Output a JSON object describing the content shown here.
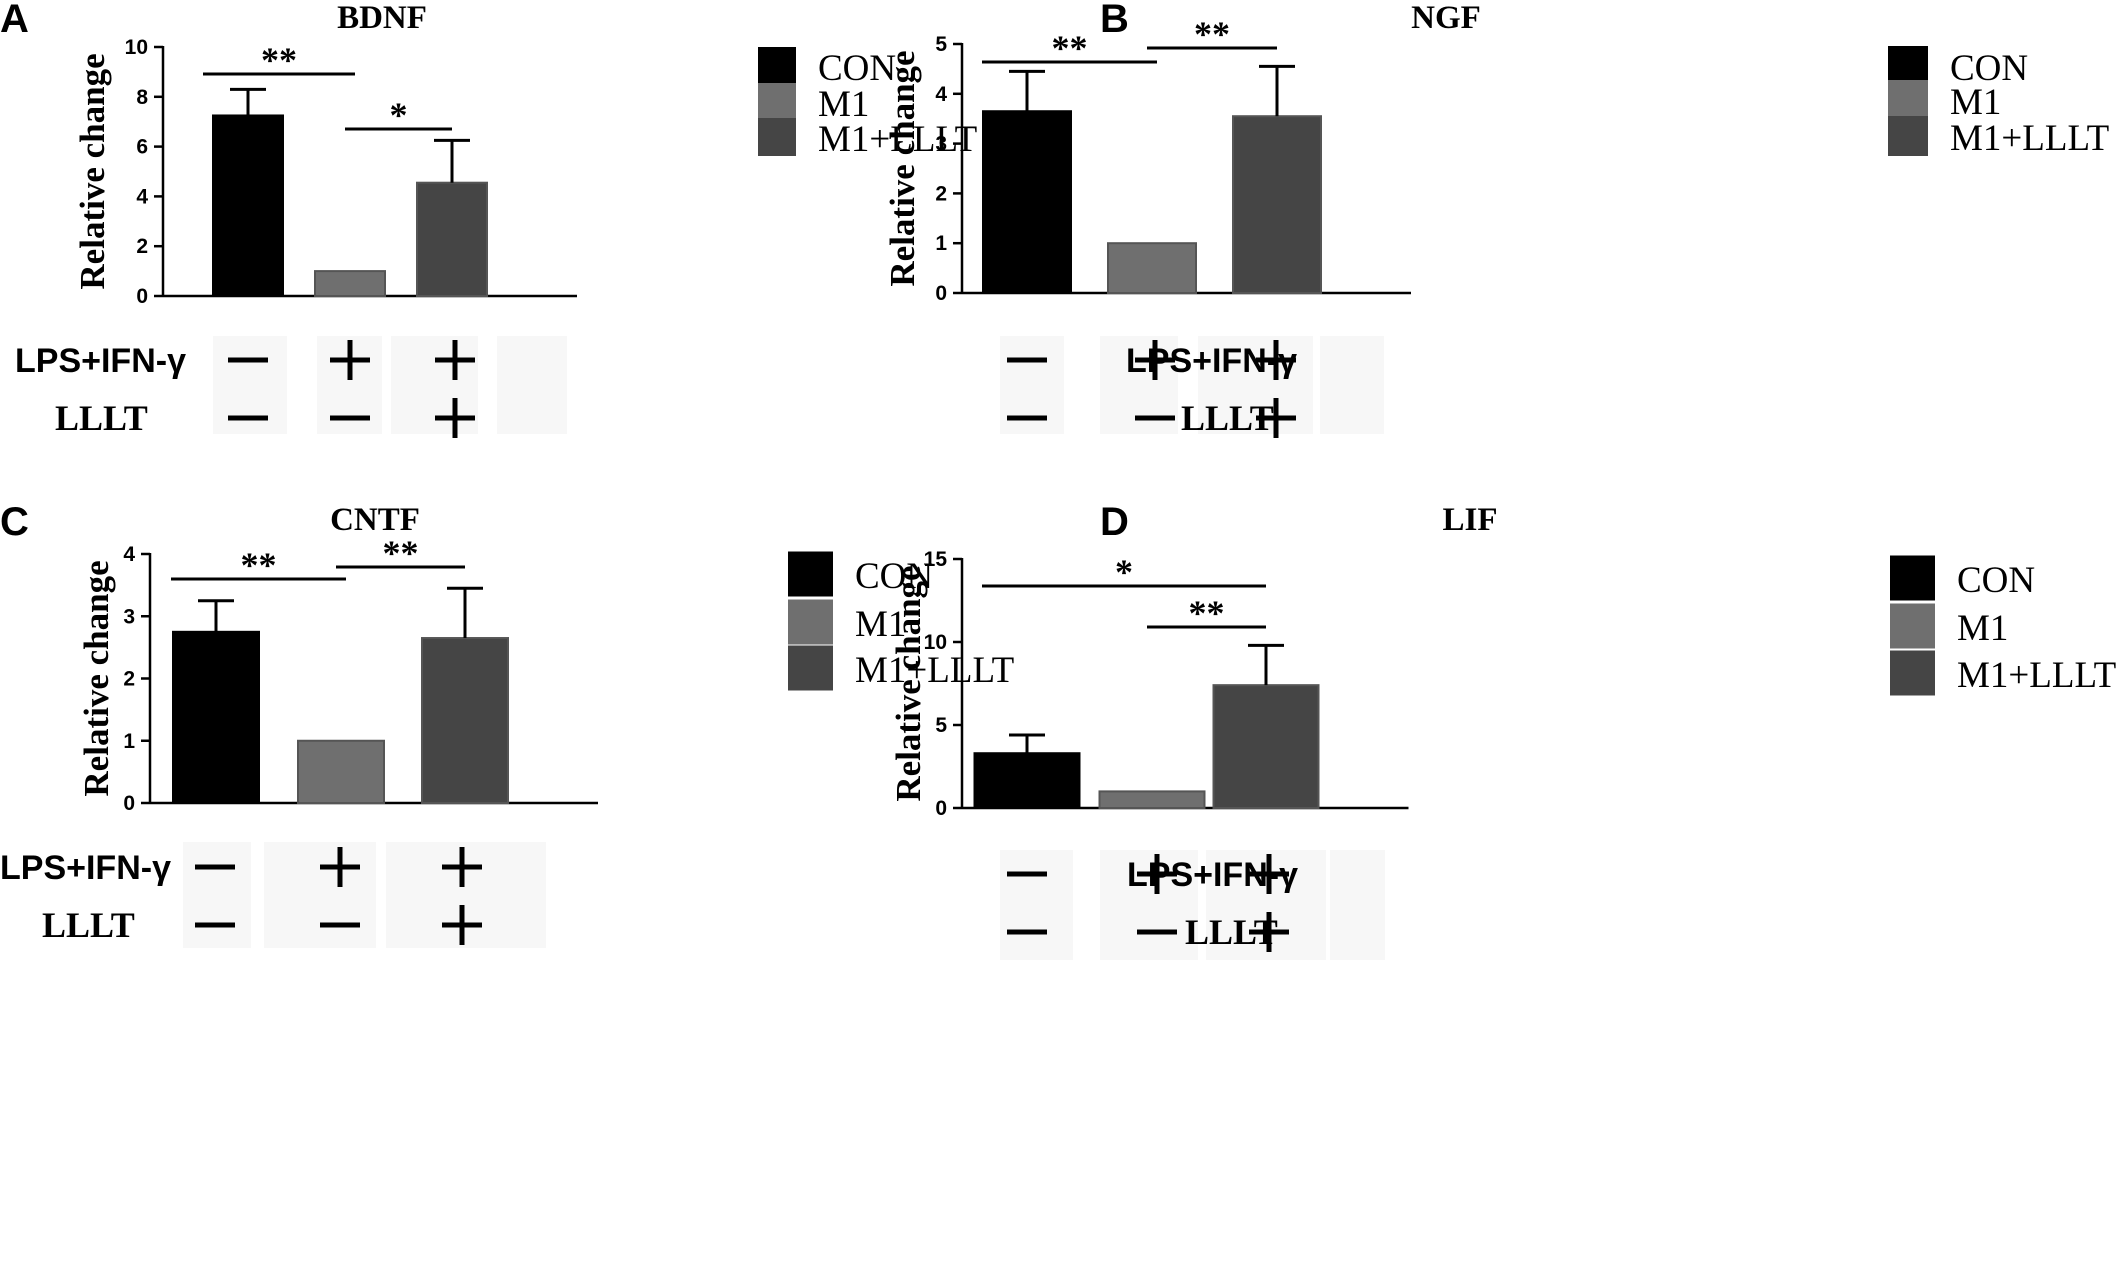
{
  "chart_data": [
    {
      "panel": "A",
      "type": "bar",
      "title": "BDNF",
      "ylabel": "Relative change",
      "categories": [
        "CON",
        "M1",
        "M1+LLLT"
      ],
      "values": [
        7.25,
        1.0,
        4.55
      ],
      "errors": [
        1.05,
        0,
        1.7
      ],
      "ylim": [
        0,
        10
      ],
      "yticks": [
        "0",
        "2",
        "4",
        "6",
        "8",
        "10"
      ],
      "colors": [
        "#000000",
        "#6f6f6f",
        "#454545"
      ],
      "significance": [
        {
          "from": 0,
          "to": 1,
          "label": "**"
        },
        {
          "from": 1,
          "to": 2,
          "label": "*"
        }
      ],
      "legend": [
        "CON",
        "M1",
        "M1+LLLT"
      ],
      "treatment_rows": [
        {
          "label": "LPS+IFN-γ",
          "signs": [
            "–",
            "+",
            "+"
          ]
        },
        {
          "label": "LLLT",
          "signs": [
            "–",
            "–",
            "+"
          ]
        }
      ]
    },
    {
      "panel": "B",
      "type": "bar",
      "title": "NGF",
      "ylabel": "Relative change",
      "categories": [
        "CON",
        "M1",
        "M1+LLLT"
      ],
      "values": [
        3.65,
        1.0,
        3.55
      ],
      "errors": [
        0.8,
        0,
        1.0
      ],
      "ylim": [
        0,
        5
      ],
      "yticks": [
        "0",
        "1",
        "2",
        "3",
        "4",
        "5"
      ],
      "colors": [
        "#000000",
        "#6f6f6f",
        "#454545"
      ],
      "significance": [
        {
          "from": 0,
          "to": 1,
          "label": "**"
        },
        {
          "from": 1,
          "to": 2,
          "label": "**"
        }
      ],
      "legend": [
        "CON",
        "M1",
        "M1+LLLT"
      ],
      "treatment_rows": [
        {
          "label": "LPS+IFN-γ",
          "signs": [
            "–",
            "+",
            "+"
          ]
        },
        {
          "label": "LLLT",
          "signs": [
            "–",
            "–",
            "+"
          ]
        }
      ]
    },
    {
      "panel": "C",
      "type": "bar",
      "title": "CNTF",
      "ylabel": "Relative change",
      "categories": [
        "CON",
        "M1",
        "M1+LLLT"
      ],
      "values": [
        2.75,
        1.0,
        2.65
      ],
      "errors": [
        0.5,
        0,
        0.8
      ],
      "ylim": [
        0,
        4
      ],
      "yticks": [
        "0",
        "1",
        "2",
        "3",
        "4"
      ],
      "colors": [
        "#000000",
        "#6f6f6f",
        "#454545"
      ],
      "significance": [
        {
          "from": 0,
          "to": 1,
          "label": "**"
        },
        {
          "from": 1,
          "to": 2,
          "label": "**"
        }
      ],
      "legend": [
        "CON",
        "M1",
        "M1+LLLT"
      ],
      "treatment_rows": [
        {
          "label": "LPS+IFN-γ",
          "signs": [
            "–",
            "+",
            "+"
          ]
        },
        {
          "label": "LLLT",
          "signs": [
            "–",
            "–",
            "+"
          ]
        }
      ]
    },
    {
      "panel": "D",
      "type": "bar",
      "title": "LIF",
      "ylabel": "Relative change",
      "categories": [
        "CON",
        "M1",
        "M1+LLLT"
      ],
      "values": [
        3.3,
        1.0,
        7.4
      ],
      "errors": [
        1.1,
        0,
        2.4
      ],
      "ylim": [
        0,
        15
      ],
      "yticks": [
        "0",
        "5",
        "10",
        "15"
      ],
      "colors": [
        "#000000",
        "#6f6f6f",
        "#454545"
      ],
      "significance": [
        {
          "from": 0,
          "to": 2,
          "label": "*"
        },
        {
          "from": 1,
          "to": 2,
          "label": "**"
        }
      ],
      "legend": [
        "CON",
        "M1",
        "M1+LLLT"
      ],
      "treatment_rows": [
        {
          "label": "LPS+IFN-γ",
          "signs": [
            "–",
            "+",
            "+"
          ]
        },
        {
          "label": "LLLT",
          "signs": [
            "–",
            "–",
            "+"
          ]
        }
      ]
    }
  ]
}
